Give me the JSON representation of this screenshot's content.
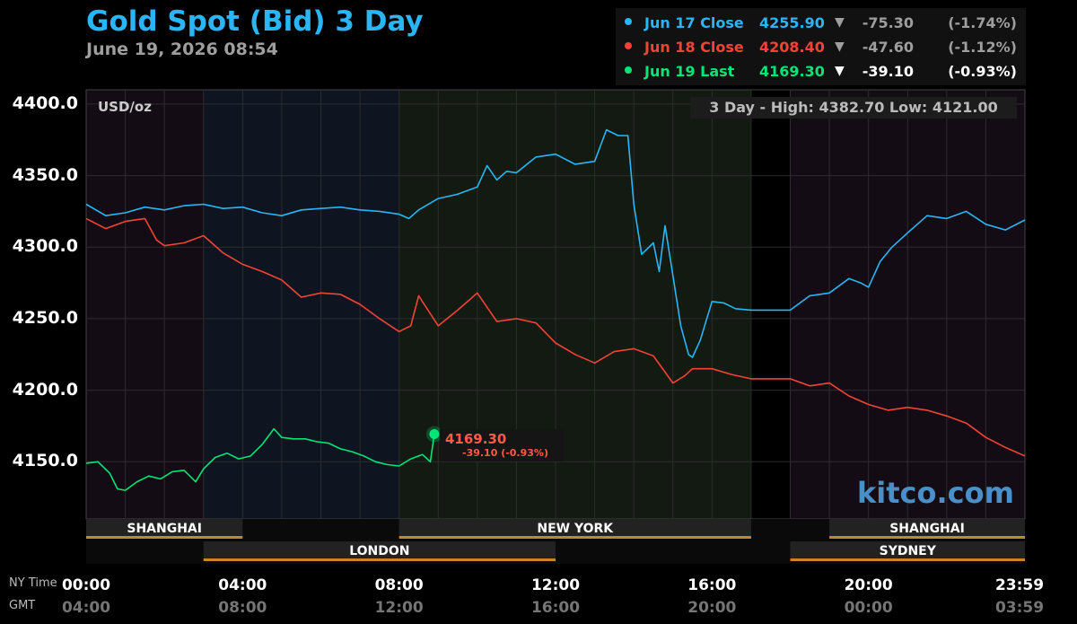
{
  "header": {
    "title": "Gold Spot (Bid) 3 Day",
    "timestamp": "June 19, 2026 08:54"
  },
  "legend": [
    {
      "name": "Jun 17 Close",
      "price": "4255.90",
      "arrow": "▼",
      "change": "-75.30",
      "pct": "(-1.74%)",
      "color": "#29b6f6",
      "text_color": "#29b6f6",
      "chg_color": "#9e9e9e"
    },
    {
      "name": "Jun 18 Close",
      "price": "4208.40",
      "arrow": "▼",
      "change": "-47.60",
      "pct": "(-1.12%)",
      "color": "#f44336",
      "text_color": "#f44336",
      "chg_color": "#9e9e9e"
    },
    {
      "name": "Jun 19 Last",
      "price": "4169.30",
      "arrow": "▼",
      "change": "-39.10",
      "pct": "(-0.93%)",
      "color": "#00e676",
      "text_color": "#00e676",
      "chg_color": "#ffffff"
    }
  ],
  "plot": {
    "unit": "USD/oz",
    "range_info": "3 Day - High: 4382.70  Low: 4121.00",
    "watermark": "kitco.com"
  },
  "last_marker": {
    "price": "4169.30",
    "change": "-39.10 (-0.93%)"
  },
  "row_labels": {
    "ny": "NY Time",
    "gmt": "GMT"
  },
  "sessions": [
    {
      "label": "SHANGHAI",
      "start_hr": 0,
      "end_hr": 4,
      "row": 1
    },
    {
      "label": "NEW YORK",
      "start_hr": 8,
      "end_hr": 17,
      "row": 1
    },
    {
      "label": "SHANGHAI",
      "start_hr": 19,
      "end_hr": 24,
      "row": 1
    },
    {
      "label": "LONDON",
      "start_hr": 3,
      "end_hr": 12,
      "row": 2
    },
    {
      "label": "SYDNEY",
      "start_hr": 18,
      "end_hr": 24,
      "row": 2
    }
  ],
  "chart_data": {
    "type": "line",
    "title": "Gold Spot (Bid) 3 Day",
    "ylabel": "USD/oz",
    "ylim": [
      4110,
      4410
    ],
    "xlim_hours": [
      0,
      24
    ],
    "y_ticks": [
      "4400.0",
      "4350.0",
      "4300.0",
      "4250.0",
      "4200.0",
      "4150.0"
    ],
    "y_tick_values": [
      4400,
      4350,
      4300,
      4250,
      4200,
      4150
    ],
    "x_ticks_ny": [
      "00:00",
      "04:00",
      "08:00",
      "12:00",
      "16:00",
      "20:00",
      "23:59"
    ],
    "x_ticks_gmt": [
      "04:00",
      "08:00",
      "12:00",
      "16:00",
      "20:00",
      "00:00",
      "03:59"
    ],
    "x_tick_hours": [
      0,
      4,
      8,
      12,
      16,
      20,
      24
    ],
    "grid": true,
    "series": [
      {
        "name": "Jun 17 Close",
        "color": "#29b6f6",
        "x": [
          0,
          0.5,
          1,
          1.5,
          2,
          2.5,
          3,
          3.5,
          4,
          4.5,
          5,
          5.5,
          6,
          6.5,
          7,
          7.5,
          8,
          8.25,
          8.5,
          9,
          9.5,
          10,
          10.25,
          10.5,
          10.75,
          11,
          11.5,
          12,
          12.5,
          13,
          13.3,
          13.6,
          13.85,
          14,
          14.2,
          14.5,
          14.65,
          14.8,
          15,
          15.2,
          15.4,
          15.5,
          15.7,
          16,
          16.3,
          16.6,
          17,
          17.5,
          18,
          18.5,
          19,
          19.5,
          19.8,
          20,
          20.3,
          20.6,
          21,
          21.5,
          22,
          22.5,
          23,
          23.5,
          24
        ],
        "values": [
          4330,
          4322,
          4324,
          4328,
          4326,
          4329,
          4330,
          4327,
          4328,
          4324,
          4322,
          4326,
          4327,
          4328,
          4326,
          4325,
          4323,
          4320,
          4326,
          4334,
          4337,
          4342,
          4357,
          4347,
          4353,
          4352,
          4363,
          4365,
          4358,
          4360,
          4382,
          4378,
          4378,
          4330,
          4295,
          4303,
          4283,
          4315,
          4280,
          4245,
          4225,
          4223,
          4235,
          4262,
          4261,
          4257,
          4256,
          4256,
          4256,
          4266,
          4268,
          4278,
          4275,
          4272,
          4290,
          4300,
          4310,
          4322,
          4320,
          4325,
          4316,
          4312,
          4319
        ]
      },
      {
        "name": "Jun 18 Close",
        "color": "#f44336",
        "x": [
          0,
          0.5,
          1,
          1.5,
          1.8,
          2,
          2.5,
          3,
          3.5,
          4,
          4.5,
          5,
          5.5,
          6,
          6.5,
          7,
          7.5,
          8,
          8.3,
          8.5,
          9,
          9.5,
          10,
          10.5,
          11,
          11.5,
          12,
          12.5,
          13,
          13.5,
          14,
          14.5,
          15,
          15.3,
          15.5,
          16,
          16.5,
          17,
          17.5,
          18,
          18.5,
          19,
          19.5,
          20,
          20.5,
          21,
          21.5,
          22,
          22.5,
          23,
          23.5,
          24
        ],
        "values": [
          4320,
          4313,
          4318,
          4320,
          4305,
          4301,
          4303,
          4308,
          4296,
          4288,
          4283,
          4277,
          4265,
          4268,
          4267,
          4260,
          4250,
          4241,
          4245,
          4266,
          4245,
          4256,
          4268,
          4248,
          4250,
          4247,
          4233,
          4225,
          4219,
          4227,
          4229,
          4224,
          4205,
          4210,
          4215,
          4215,
          4211,
          4208,
          4208,
          4208,
          4203,
          4205,
          4196,
          4190,
          4186,
          4188,
          4186,
          4182,
          4177,
          4167,
          4160,
          4154
        ]
      },
      {
        "name": "Jun 19 Last",
        "color": "#00e676",
        "x": [
          0,
          0.3,
          0.6,
          0.8,
          1,
          1.3,
          1.6,
          1.9,
          2.2,
          2.5,
          2.8,
          3,
          3.3,
          3.6,
          3.9,
          4.2,
          4.5,
          4.8,
          5,
          5.3,
          5.6,
          5.9,
          6.2,
          6.5,
          6.8,
          7.1,
          7.4,
          7.7,
          8,
          8.3,
          8.6,
          8.8,
          8.9
        ],
        "values": [
          4149,
          4150,
          4142,
          4131,
          4130,
          4136,
          4140,
          4138,
          4143,
          4144,
          4136,
          4145,
          4153,
          4156,
          4152,
          4154,
          4162,
          4173,
          4167,
          4166,
          4166,
          4164,
          4163,
          4159,
          4157,
          4154,
          4150,
          4148,
          4147,
          4152,
          4155,
          4150,
          4169.3
        ]
      }
    ]
  }
}
